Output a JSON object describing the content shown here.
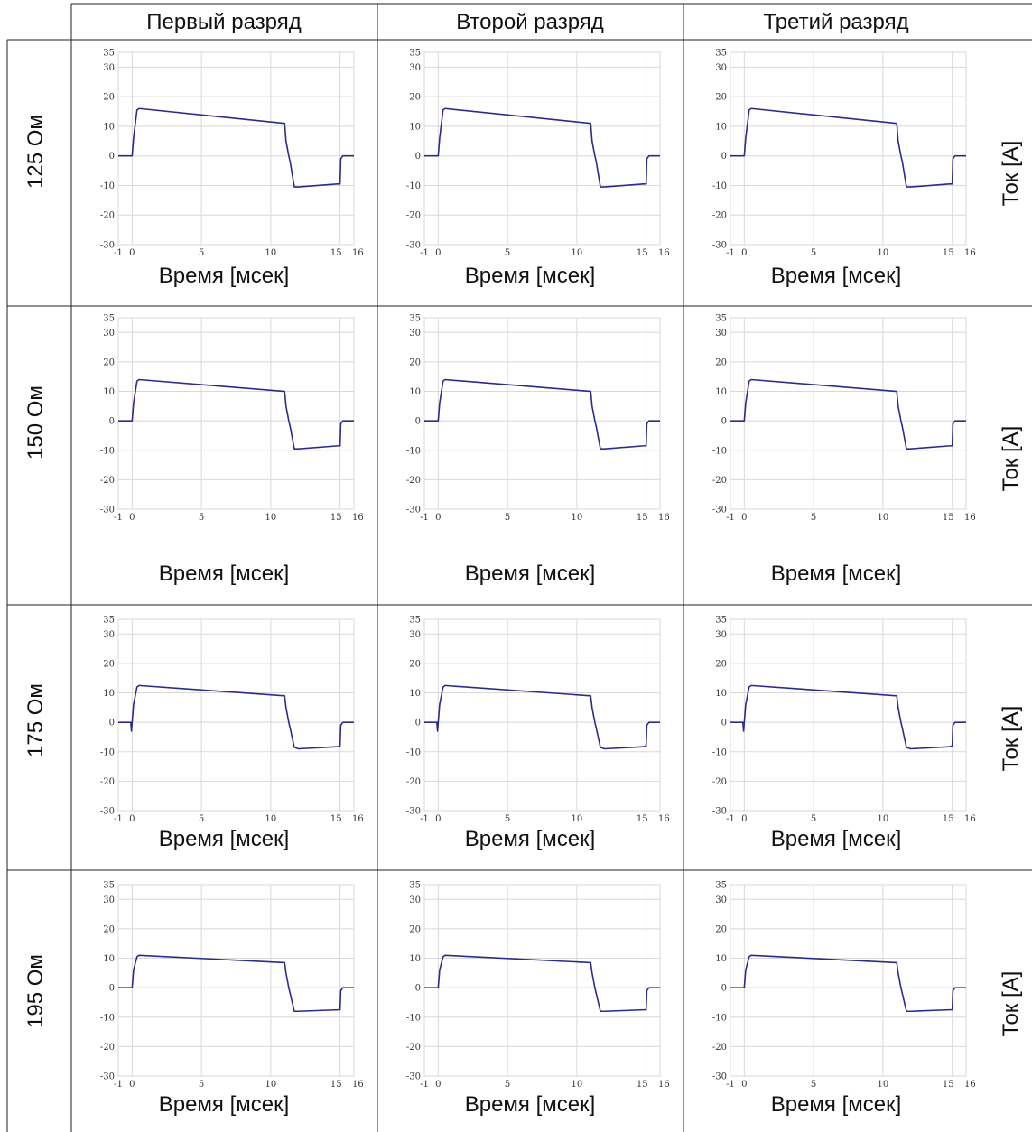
{
  "table": {
    "columns": [
      "Первый разряд",
      "Второй разряд",
      "Третий разряд"
    ],
    "rows": [
      "125 Ом",
      "150 Ом",
      "175 Ом",
      "195 Ом"
    ],
    "xlabel": "Время [мсек]",
    "ylabel": "Ток [A]"
  },
  "chart_data": {
    "type": "line",
    "layout": "4x3 grid of small multiples; each row shares the same waveform",
    "xlabel": "Время [мсек]",
    "ylabel": "Ток [A]",
    "xlim": [
      -1,
      16
    ],
    "ylim": [
      -30,
      35
    ],
    "xticks": [
      -1,
      0,
      5,
      10,
      15,
      16
    ],
    "yticks": [
      -30,
      -20,
      -10,
      0,
      10,
      20,
      30,
      35
    ],
    "grid": true,
    "line_color": "#2b2b8c",
    "panels": [
      {
        "row": "125 Ом",
        "x": [
          -1,
          0,
          0.1,
          0.35,
          0.5,
          11.0,
          11.1,
          11.3,
          11.4,
          11.7,
          12.0,
          14.8,
          15.0,
          15.05,
          15.2,
          16
        ],
        "y": [
          0,
          0,
          6,
          15.5,
          16,
          11,
          5,
          0,
          -2,
          -10.5,
          -10.5,
          -9.5,
          -9.5,
          -1,
          0,
          0
        ]
      },
      {
        "row": "150 Ом",
        "x": [
          -1,
          0,
          0.1,
          0.35,
          0.5,
          11.0,
          11.1,
          11.3,
          11.4,
          11.7,
          12.0,
          14.8,
          15.0,
          15.05,
          15.2,
          16
        ],
        "y": [
          0,
          0,
          6,
          13.5,
          14,
          10,
          5,
          0,
          -2,
          -9.5,
          -9.5,
          -8.5,
          -8.5,
          -1,
          0,
          0
        ]
      },
      {
        "row": "175 Ом",
        "x": [
          -1,
          -0.1,
          -0.05,
          0.1,
          0.35,
          0.5,
          11.0,
          11.1,
          11.3,
          11.4,
          11.7,
          12.0,
          14.8,
          15.0,
          15.05,
          15.2,
          16
        ],
        "y": [
          0,
          0,
          -3,
          6,
          12,
          12.5,
          9,
          5,
          0,
          -2,
          -8.5,
          -9,
          -8.3,
          -8,
          -1,
          0,
          0
        ]
      },
      {
        "row": "195 Ом",
        "x": [
          -1,
          0,
          0.1,
          0.35,
          0.5,
          11.0,
          11.1,
          11.3,
          11.4,
          11.7,
          12.0,
          14.8,
          15.0,
          15.05,
          15.2,
          16
        ],
        "y": [
          0,
          0,
          6,
          10.5,
          11,
          8.5,
          5,
          0,
          -2,
          -8,
          -8,
          -7.5,
          -7.5,
          -1,
          0,
          0
        ]
      }
    ]
  }
}
